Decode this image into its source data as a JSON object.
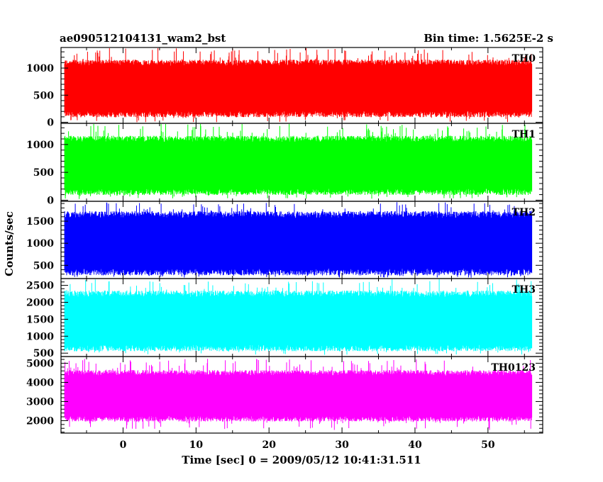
{
  "header": {
    "title": "ae090512104131_wam2_bst",
    "bin_time": "Bin time: 1.5625E-2 s"
  },
  "chart_data": {
    "type": "line",
    "xlabel": "Time [sec] 0 = 2009/05/12 10:41:31.511",
    "ylabel": "Counts/sec",
    "xlim": [
      -8.5,
      57.5
    ],
    "x_range": [
      -8,
      56
    ],
    "x_ticks": [
      0,
      10,
      20,
      30,
      40,
      50
    ],
    "x_tick_labels": [
      "0",
      "10",
      "20",
      "30",
      "40",
      "50"
    ],
    "bin_time_s": 0.015625,
    "panels": [
      {
        "name": "TH0",
        "color": "#ff0000",
        "ylim": [
          -20,
          1380
        ],
        "y_ticks": [
          0,
          500,
          1000
        ],
        "y_tick_labels": [
          "0",
          "500",
          "1000"
        ],
        "typical_range": [
          150,
          1100
        ],
        "extreme_range": [
          0,
          1380
        ]
      },
      {
        "name": "TH1",
        "color": "#00ff00",
        "ylim": [
          -20,
          1380
        ],
        "y_ticks": [
          0,
          500,
          1000
        ],
        "y_tick_labels": [
          "0",
          "500",
          "1000"
        ],
        "typical_range": [
          150,
          1100
        ],
        "extreme_range": [
          20,
          1380
        ]
      },
      {
        "name": "TH2",
        "color": "#0000ff",
        "ylim": [
          200,
          1950
        ],
        "y_ticks": [
          500,
          1000,
          1500
        ],
        "y_tick_labels": [
          "500",
          "1000",
          "1500"
        ],
        "typical_range": [
          350,
          1650
        ],
        "extreme_range": [
          220,
          1950
        ]
      },
      {
        "name": "TH3",
        "color": "#00ffff",
        "ylim": [
          400,
          2700
        ],
        "y_ticks": [
          500,
          1000,
          1500,
          2000,
          2500
        ],
        "y_tick_labels": [
          "500",
          "1000",
          "1500",
          "2000",
          "2500"
        ],
        "typical_range": [
          650,
          2250
        ],
        "extreme_range": [
          450,
          2700
        ]
      },
      {
        "name": "TH0123",
        "color": "#ff00ff",
        "ylim": [
          1350,
          5350
        ],
        "y_ticks": [
          2000,
          3000,
          4000,
          5000
        ],
        "y_tick_labels": [
          "2000",
          "3000",
          "4000",
          "5000"
        ],
        "typical_range": [
          2100,
          4500
        ],
        "extreme_range": [
          1500,
          5300
        ]
      }
    ]
  }
}
